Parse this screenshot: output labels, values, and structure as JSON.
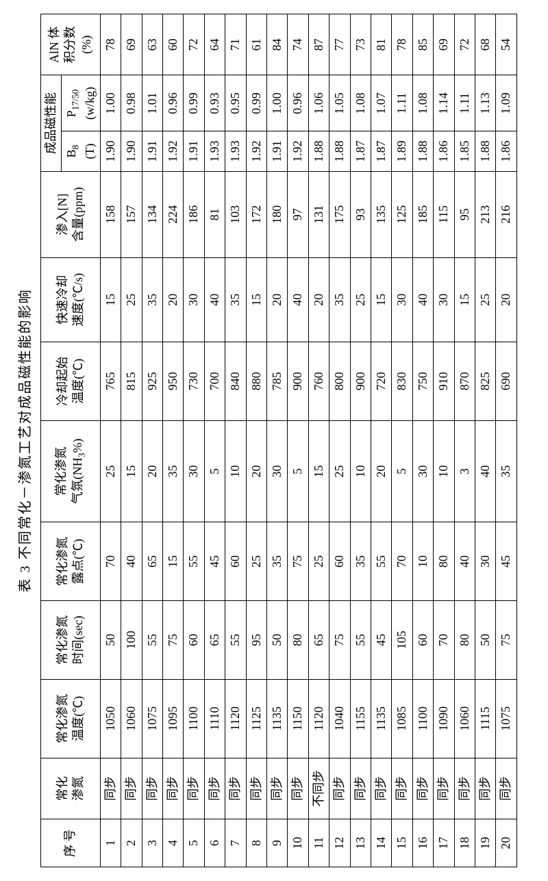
{
  "title": "表 3  不同常化－渗氮工艺对成品磁性能的影响",
  "headers": {
    "seq": "序 号",
    "normalize_nitride": "常化\n渗氮",
    "temp": "常化渗氮\n温度(℃)",
    "time": "常化渗氮\n时间(sec)",
    "dewpoint": "常化渗氮\n露点(℃)",
    "atmosphere": "常化渗氮\n气氛(NH₃%)",
    "cool_start_temp": "冷却起始\n温度(℃)",
    "cool_rate": "快速冷却\n速度(℃/s)",
    "n_content": "渗入[N]\n含量(ppm)",
    "magnetic_group": "成品磁性能",
    "b8": "B₈\n(T)",
    "p1750": "P₁₇/₅₀\n(w/kg)",
    "aln": "AlN 体\n积分数\n(%)"
  },
  "rows": [
    {
      "seq": "1",
      "norm": "同步",
      "temp": "1050",
      "time": "50",
      "dew": "70",
      "atm": "25",
      "cstart": "765",
      "crate": "15",
      "n": "158",
      "b8": "1.90",
      "p": "1.00",
      "aln": "78"
    },
    {
      "seq": "2",
      "norm": "同步",
      "temp": "1060",
      "time": "100",
      "dew": "40",
      "atm": "15",
      "cstart": "815",
      "crate": "25",
      "n": "157",
      "b8": "1.90",
      "p": "0.98",
      "aln": "69"
    },
    {
      "seq": "3",
      "norm": "同步",
      "temp": "1075",
      "time": "55",
      "dew": "65",
      "atm": "20",
      "cstart": "925",
      "crate": "35",
      "n": "134",
      "b8": "1.91",
      "p": "1.01",
      "aln": "63"
    },
    {
      "seq": "4",
      "norm": "同步",
      "temp": "1095",
      "time": "75",
      "dew": "15",
      "atm": "35",
      "cstart": "950",
      "crate": "20",
      "n": "224",
      "b8": "1.92",
      "p": "0.96",
      "aln": "60"
    },
    {
      "seq": "5",
      "norm": "同步",
      "temp": "1100",
      "time": "60",
      "dew": "55",
      "atm": "30",
      "cstart": "730",
      "crate": "30",
      "n": "186",
      "b8": "1.91",
      "p": "0.99",
      "aln": "72"
    },
    {
      "seq": "6",
      "norm": "同步",
      "temp": "1110",
      "time": "65",
      "dew": "45",
      "atm": "5",
      "cstart": "700",
      "crate": "40",
      "n": "81",
      "b8": "1.93",
      "p": "0.93",
      "aln": "64"
    },
    {
      "seq": "7",
      "norm": "同步",
      "temp": "1120",
      "time": "55",
      "dew": "60",
      "atm": "10",
      "cstart": "840",
      "crate": "35",
      "n": "103",
      "b8": "1.93",
      "p": "0.95",
      "aln": "71"
    },
    {
      "seq": "8",
      "norm": "同步",
      "temp": "1125",
      "time": "95",
      "dew": "25",
      "atm": "20",
      "cstart": "880",
      "crate": "15",
      "n": "172",
      "b8": "1.92",
      "p": "0.99",
      "aln": "61"
    },
    {
      "seq": "9",
      "norm": "同步",
      "temp": "1135",
      "time": "50",
      "dew": "35",
      "atm": "30",
      "cstart": "785",
      "crate": "20",
      "n": "180",
      "b8": "1.91",
      "p": "1.00",
      "aln": "84"
    },
    {
      "seq": "10",
      "norm": "同步",
      "temp": "1150",
      "time": "80",
      "dew": "75",
      "atm": "5",
      "cstart": "900",
      "crate": "40",
      "n": "97",
      "b8": "1.92",
      "p": "0.96",
      "aln": "74"
    },
    {
      "seq": "11",
      "norm": "不同步",
      "temp": "1120",
      "time": "65",
      "dew": "25",
      "atm": "15",
      "cstart": "760",
      "crate": "20",
      "n": "131",
      "b8": "1.88",
      "p": "1.06",
      "aln": "87"
    },
    {
      "seq": "12",
      "norm": "同步",
      "temp": "1040",
      "time": "75",
      "dew": "60",
      "atm": "25",
      "cstart": "800",
      "crate": "35",
      "n": "175",
      "b8": "1.88",
      "p": "1.05",
      "aln": "77"
    },
    {
      "seq": "13",
      "norm": "同步",
      "temp": "1155",
      "time": "55",
      "dew": "35",
      "atm": "10",
      "cstart": "900",
      "crate": "25",
      "n": "93",
      "b8": "1.87",
      "p": "1.08",
      "aln": "73"
    },
    {
      "seq": "14",
      "norm": "同步",
      "temp": "1135",
      "time": "45",
      "dew": "55",
      "atm": "20",
      "cstart": "720",
      "crate": "15",
      "n": "135",
      "b8": "1.87",
      "p": "1.07",
      "aln": "81"
    },
    {
      "seq": "15",
      "norm": "同步",
      "temp": "1085",
      "time": "105",
      "dew": "70",
      "atm": "5",
      "cstart": "830",
      "crate": "30",
      "n": "125",
      "b8": "1.89",
      "p": "1.11",
      "aln": "78"
    },
    {
      "seq": "16",
      "norm": "同步",
      "temp": "1100",
      "time": "60",
      "dew": "10",
      "atm": "30",
      "cstart": "750",
      "crate": "40",
      "n": "185",
      "b8": "1.88",
      "p": "1.08",
      "aln": "85"
    },
    {
      "seq": "17",
      "norm": "同步",
      "temp": "1090",
      "time": "70",
      "dew": "80",
      "atm": "10",
      "cstart": "910",
      "crate": "30",
      "n": "115",
      "b8": "1.86",
      "p": "1.14",
      "aln": "69"
    },
    {
      "seq": "18",
      "norm": "同步",
      "temp": "1060",
      "time": "80",
      "dew": "40",
      "atm": "3",
      "cstart": "870",
      "crate": "15",
      "n": "95",
      "b8": "1.85",
      "p": "1.11",
      "aln": "72"
    },
    {
      "seq": "19",
      "norm": "同步",
      "temp": "1115",
      "time": "50",
      "dew": "30",
      "atm": "40",
      "cstart": "825",
      "crate": "25",
      "n": "213",
      "b8": "1.88",
      "p": "1.13",
      "aln": "68"
    },
    {
      "seq": "20",
      "norm": "同步",
      "temp": "1075",
      "time": "75",
      "dew": "45",
      "atm": "35",
      "cstart": "690",
      "crate": "20",
      "n": "216",
      "b8": "1.86",
      "p": "1.09",
      "aln": "54"
    }
  ]
}
